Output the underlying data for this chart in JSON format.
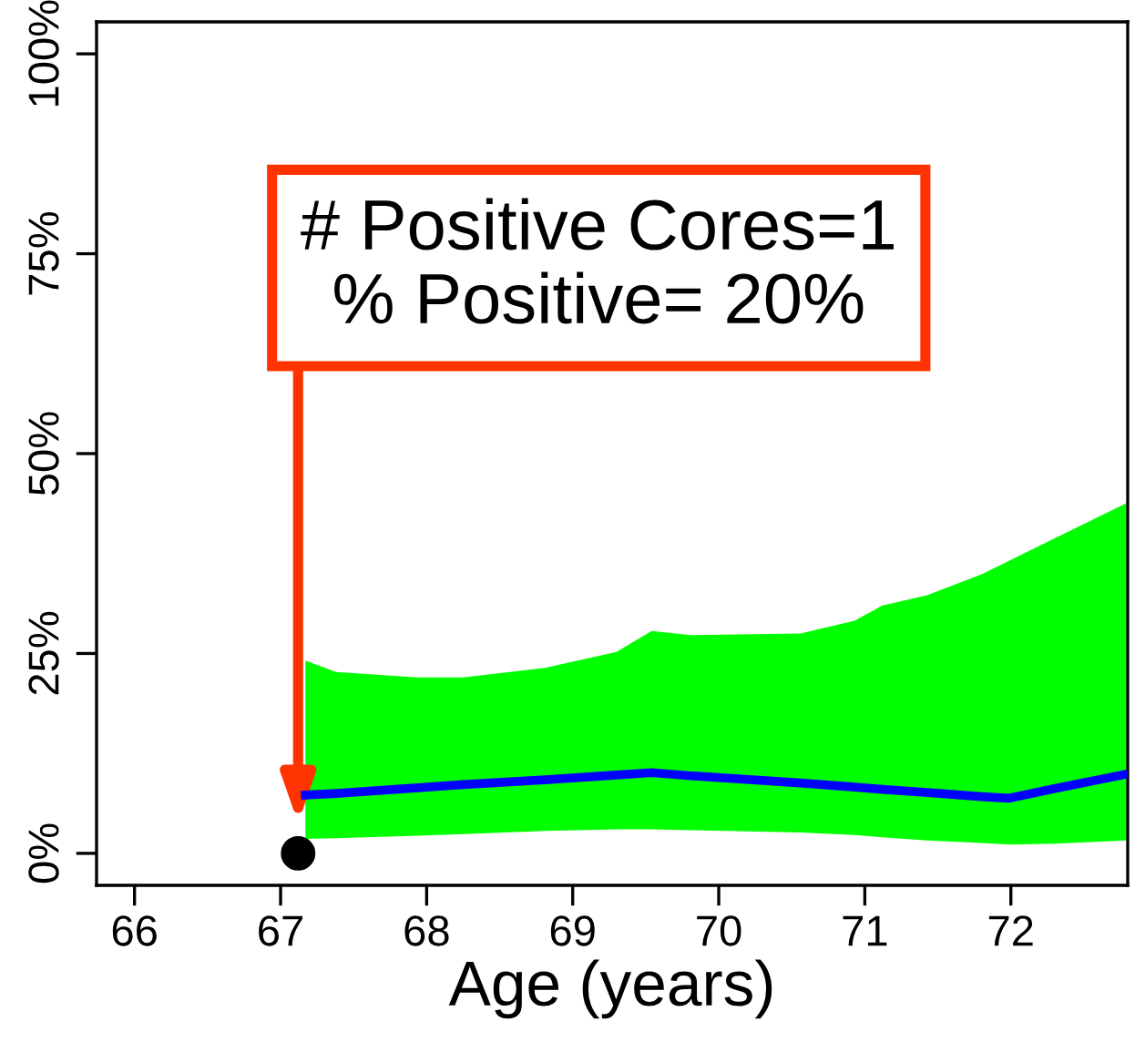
{
  "chart_data": {
    "type": "line",
    "xlabel": "Age (years)",
    "xlim": [
      65.74,
      72.8
    ],
    "xticks": [
      66,
      67,
      68,
      69,
      70,
      71,
      72
    ],
    "ylim": [
      -4,
      104
    ],
    "yticks": [
      {
        "value": 0,
        "label": "0%"
      },
      {
        "value": 25,
        "label": "25%"
      },
      {
        "value": 50,
        "label": "50%"
      },
      {
        "value": 75,
        "label": "75%"
      },
      {
        "value": 100,
        "label": "100%"
      }
    ],
    "grid": false,
    "legend": false,
    "line_style": "solid",
    "series": [
      {
        "color": "#0000ff",
        "x": [
          67.17,
          67.38,
          67.94,
          68.25,
          68.81,
          69.3,
          69.54,
          69.81,
          70.56,
          70.93,
          71.12,
          71.43,
          71.8,
          71.99,
          72.3,
          72.79
        ],
        "values": [
          7.3,
          7.5,
          8.2,
          8.6,
          9.2,
          9.8,
          10.1,
          9.7,
          8.8,
          8.3,
          8.0,
          7.6,
          7.1,
          6.9,
          8.1,
          9.9
        ],
        "lower": [
          1.8,
          1.9,
          2.2,
          2.4,
          2.8,
          3.0,
          3.0,
          2.9,
          2.6,
          2.3,
          2.0,
          1.6,
          1.3,
          1.1,
          1.2,
          1.6
        ],
        "upper": [
          24.1,
          22.7,
          22.0,
          22.0,
          23.2,
          25.2,
          27.8,
          27.3,
          27.5,
          29.1,
          31.0,
          32.3,
          34.9,
          36.6,
          39.4,
          43.8
        ],
        "colors": [
          "#00ff00",
          "#00ff00",
          "#00ff00",
          "#00ff00",
          "#00ff00",
          "#00ff00",
          "#00ff00",
          "#00ff00",
          "#00ff00",
          "#00ff00",
          "#00ff00",
          "#00ff00",
          "#00ff00",
          "#00ff00",
          "#00ff00",
          "#00ff00"
        ]
      },
      {
        "type": "scatter",
        "color": "#000000",
        "x": [
          67.12
        ],
        "values": [
          0
        ],
        "marker": "circle"
      }
    ],
    "annotations": [
      "# Positive Cores=1\n% Positive= 20%"
    ]
  }
}
